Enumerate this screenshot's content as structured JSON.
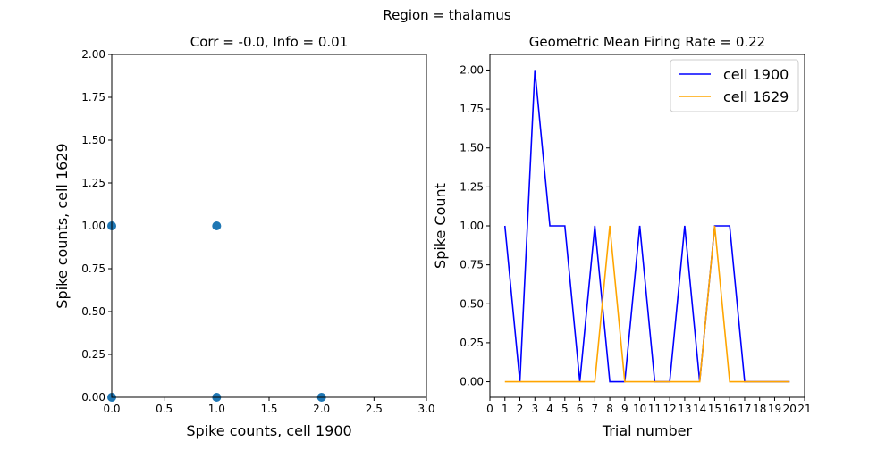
{
  "figure": {
    "suptitle": "Region = thalamus"
  },
  "chart_data": [
    {
      "type": "scatter",
      "title": "Corr = -0.0, Info = 0.01",
      "xlabel": "Spike counts, cell 1900",
      "ylabel": "Spike counts, cell 1629",
      "xlim": [
        0,
        3
      ],
      "ylim": [
        0,
        2
      ],
      "xticks": [
        0,
        0.5,
        1,
        1.5,
        2,
        2.5,
        3
      ],
      "xtick_labels": [
        "0.0",
        "0.5",
        "1.0",
        "1.5",
        "2.0",
        "2.5",
        "3.0"
      ],
      "yticks": [
        0,
        0.25,
        0.5,
        0.75,
        1,
        1.25,
        1.5,
        1.75,
        2
      ],
      "ytick_labels": [
        "0.00",
        "0.25",
        "0.50",
        "0.75",
        "1.00",
        "1.25",
        "1.50",
        "1.75",
        "2.00"
      ],
      "points": [
        {
          "x": 0,
          "y": 1
        },
        {
          "x": 1,
          "y": 1
        },
        {
          "x": 0,
          "y": 0
        },
        {
          "x": 1,
          "y": 0
        },
        {
          "x": 2,
          "y": 0
        }
      ],
      "color": "#1f77b4",
      "grid": false
    },
    {
      "type": "line",
      "title": "Geometric Mean Firing Rate = 0.22",
      "xlabel": "Trial number",
      "ylabel": "Spike Count",
      "xlim": [
        0,
        21
      ],
      "ylim": [
        -0.1,
        2.1
      ],
      "xticks": [
        0,
        1,
        2,
        3,
        4,
        5,
        6,
        7,
        8,
        9,
        10,
        11,
        12,
        13,
        14,
        15,
        16,
        17,
        18,
        19,
        20,
        21
      ],
      "xtick_labels": [
        "0",
        "1",
        "2",
        "3",
        "4",
        "5",
        "6",
        "7",
        "8",
        "9",
        "10",
        "11",
        "12",
        "13",
        "14",
        "15",
        "16",
        "17",
        "18",
        "19",
        "20",
        "21"
      ],
      "yticks": [
        0,
        0.25,
        0.5,
        0.75,
        1,
        1.25,
        1.5,
        1.75,
        2
      ],
      "ytick_labels": [
        "0.00",
        "0.25",
        "0.50",
        "0.75",
        "1.00",
        "1.25",
        "1.50",
        "1.75",
        "2.00"
      ],
      "x": [
        1,
        2,
        3,
        4,
        5,
        6,
        7,
        8,
        9,
        10,
        11,
        12,
        13,
        14,
        15,
        16,
        17,
        18,
        19,
        20
      ],
      "series": [
        {
          "name": "cell 1900",
          "color": "#0000ff",
          "values": [
            1,
            0,
            2,
            1,
            1,
            0,
            1,
            0,
            0,
            1,
            0,
            0,
            1,
            0,
            1,
            1,
            0,
            0,
            0,
            0
          ]
        },
        {
          "name": "cell 1629",
          "color": "#ffa500",
          "values": [
            0,
            0,
            0,
            0,
            0,
            0,
            0,
            1,
            0,
            0,
            0,
            0,
            0,
            0,
            1,
            0,
            0,
            0,
            0,
            0
          ]
        }
      ],
      "legend": "top-right",
      "grid": false
    }
  ]
}
